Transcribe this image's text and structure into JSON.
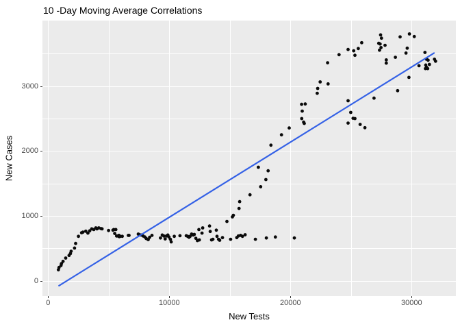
{
  "chart_data": {
    "type": "scatter",
    "title": "10 -Day Moving Average Correlations",
    "xlabel": "New Tests",
    "ylabel": "New Cases",
    "x_ticks": [
      0,
      10000,
      20000,
      30000
    ],
    "y_ticks": [
      0,
      1000,
      2000,
      3000
    ],
    "x_minor_gridlines": [
      5000,
      15000,
      25000
    ],
    "y_minor_gridlines": [
      500,
      1500,
      2500,
      3500
    ],
    "x_domain": [
      -469,
      33656
    ],
    "y_domain": [
      -236,
      4011
    ],
    "legend": "none",
    "grid": "on",
    "panel_background": "#EBEBEB",
    "grid_color": "#FFFFFF",
    "point_color": "#0A0A0A",
    "line_color": "#3461E6",
    "tick_label_color": "#4D4D4D",
    "trend_line": {
      "x1": 900,
      "y1": -75,
      "x2": 31850,
      "y2": 3510
    },
    "points": [
      [
        850,
        170
      ],
      [
        900,
        205
      ],
      [
        1060,
        235
      ],
      [
        1100,
        265
      ],
      [
        1230,
        300
      ],
      [
        1450,
        350
      ],
      [
        1730,
        390
      ],
      [
        1840,
        420
      ],
      [
        1900,
        455
      ],
      [
        2180,
        505
      ],
      [
        2270,
        575
      ],
      [
        2500,
        685
      ],
      [
        2760,
        740
      ],
      [
        2870,
        750
      ],
      [
        3110,
        765
      ],
      [
        3280,
        735
      ],
      [
        3430,
        770
      ],
      [
        3600,
        800
      ],
      [
        3770,
        790
      ],
      [
        3940,
        815
      ],
      [
        4030,
        800
      ],
      [
        4180,
        815
      ],
      [
        4370,
        805
      ],
      [
        4450,
        800
      ],
      [
        4990,
        775
      ],
      [
        5350,
        780
      ],
      [
        5420,
        790
      ],
      [
        5500,
        730
      ],
      [
        5590,
        790
      ],
      [
        5650,
        690
      ],
      [
        5760,
        690
      ],
      [
        5840,
        700
      ],
      [
        5870,
        680
      ],
      [
        5950,
        685
      ],
      [
        6120,
        685
      ],
      [
        6620,
        700
      ],
      [
        6680,
        700
      ],
      [
        7440,
        720
      ],
      [
        7540,
        710
      ],
      [
        7690,
        705
      ],
      [
        7840,
        690
      ],
      [
        7990,
        675
      ],
      [
        8100,
        650
      ],
      [
        8260,
        635
      ],
      [
        8380,
        670
      ],
      [
        8570,
        700
      ],
      [
        9270,
        660
      ],
      [
        9420,
        705
      ],
      [
        9550,
        690
      ],
      [
        9660,
        645
      ],
      [
        9770,
        690
      ],
      [
        9880,
        705
      ],
      [
        9980,
        675
      ],
      [
        10090,
        640
      ],
      [
        10160,
        600
      ],
      [
        10410,
        685
      ],
      [
        10880,
        695
      ],
      [
        11400,
        695
      ],
      [
        11520,
        685
      ],
      [
        11630,
        670
      ],
      [
        11720,
        685
      ],
      [
        11840,
        720
      ],
      [
        11970,
        705
      ],
      [
        12060,
        715
      ],
      [
        12190,
        655
      ],
      [
        12320,
        620
      ],
      [
        12440,
        790
      ],
      [
        12480,
        630
      ],
      [
        12700,
        735
      ],
      [
        12760,
        815
      ],
      [
        13320,
        845
      ],
      [
        13380,
        760
      ],
      [
        13490,
        630
      ],
      [
        13600,
        640
      ],
      [
        13880,
        780
      ],
      [
        13940,
        685
      ],
      [
        14070,
        640
      ],
      [
        14160,
        625
      ],
      [
        14390,
        665
      ],
      [
        14760,
        915
      ],
      [
        15060,
        640
      ],
      [
        15210,
        985
      ],
      [
        15290,
        1010
      ],
      [
        15570,
        665
      ],
      [
        15700,
        690
      ],
      [
        15760,
        1115
      ],
      [
        15810,
        1220
      ],
      [
        15890,
        700
      ],
      [
        16040,
        685
      ],
      [
        16260,
        710
      ],
      [
        16660,
        1325
      ],
      [
        17110,
        640
      ],
      [
        17350,
        1750
      ],
      [
        17540,
        1450
      ],
      [
        17970,
        1560
      ],
      [
        18010,
        660
      ],
      [
        18160,
        1695
      ],
      [
        18390,
        2090
      ],
      [
        18760,
        675
      ],
      [
        19260,
        2250
      ],
      [
        19900,
        2355
      ],
      [
        20320,
        660
      ],
      [
        20920,
        2720
      ],
      [
        20970,
        2615
      ],
      [
        20930,
        2500
      ],
      [
        21090,
        2445
      ],
      [
        21140,
        2425
      ],
      [
        21220,
        2725
      ],
      [
        22210,
        2890
      ],
      [
        22250,
        2965
      ],
      [
        22450,
        3065
      ],
      [
        23070,
        3360
      ],
      [
        23110,
        3035
      ],
      [
        24010,
        3485
      ],
      [
        24760,
        3565
      ],
      [
        24760,
        2775
      ],
      [
        24760,
        2430
      ],
      [
        24980,
        2595
      ],
      [
        25170,
        2505
      ],
      [
        25220,
        3545
      ],
      [
        25320,
        3475
      ],
      [
        25320,
        2500
      ],
      [
        25600,
        3580
      ],
      [
        25750,
        2410
      ],
      [
        25880,
        3670
      ],
      [
        26150,
        2360
      ],
      [
        26900,
        2815
      ],
      [
        27290,
        3660
      ],
      [
        27350,
        3555
      ],
      [
        27400,
        3650
      ],
      [
        27440,
        3790
      ],
      [
        27475,
        3595
      ],
      [
        27515,
        3740
      ],
      [
        27810,
        3630
      ],
      [
        27910,
        3405
      ],
      [
        27910,
        3355
      ],
      [
        28660,
        3445
      ],
      [
        28850,
        2930
      ],
      [
        29050,
        3760
      ],
      [
        29540,
        3510
      ],
      [
        29640,
        3585
      ],
      [
        29780,
        3135
      ],
      [
        29820,
        3805
      ],
      [
        30220,
        3765
      ],
      [
        30610,
        3315
      ],
      [
        31100,
        3520
      ],
      [
        31140,
        3270
      ],
      [
        31170,
        3325
      ],
      [
        31230,
        3415
      ],
      [
        31230,
        3290
      ],
      [
        31330,
        3270
      ],
      [
        31360,
        3400
      ],
      [
        31470,
        3335
      ],
      [
        31890,
        3415
      ],
      [
        31980,
        3385
      ]
    ]
  }
}
